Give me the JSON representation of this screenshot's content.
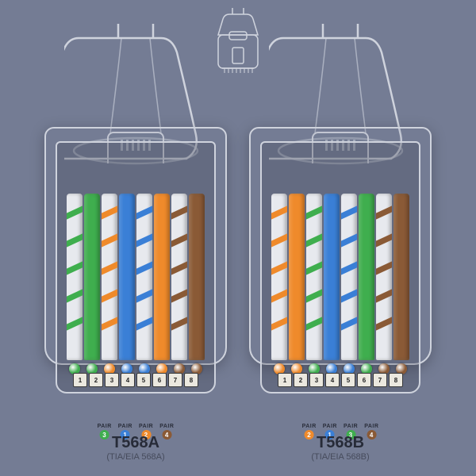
{
  "background_color": "#747c94",
  "outline_color": "#cfd3dd",
  "pin_bg": "#ebe8df",
  "pin_border": "#3a3a3a",
  "pair_text": "PAIR",
  "pins": [
    "1",
    "2",
    "3",
    "4",
    "5",
    "6",
    "7",
    "8"
  ],
  "connectors": {
    "a": {
      "title": "T568A",
      "subtitle": "(TIA/EIA 568A)",
      "wires": [
        {
          "base": "#e7e9ee",
          "stripe": "#3fae4e"
        },
        {
          "base": "#3fae4e",
          "stripe": null
        },
        {
          "base": "#e7e9ee",
          "stripe": "#ef8a2b"
        },
        {
          "base": "#3a7fd6",
          "stripe": null
        },
        {
          "base": "#e7e9ee",
          "stripe": "#3a7fd6"
        },
        {
          "base": "#ef8a2b",
          "stripe": null
        },
        {
          "base": "#e7e9ee",
          "stripe": "#8a5a36"
        },
        {
          "base": "#8a5a36",
          "stripe": null
        }
      ],
      "pairs": [
        {
          "num": "3",
          "color": "#3fae4e"
        },
        {
          "num": "1",
          "color": "#3a7fd6"
        },
        {
          "num": "2",
          "color": "#ef8a2b"
        },
        {
          "num": "4",
          "color": "#8a5a36"
        }
      ]
    },
    "b": {
      "title": "T568B",
      "subtitle": "(TIA/EIA 568B)",
      "wires": [
        {
          "base": "#e7e9ee",
          "stripe": "#ef8a2b"
        },
        {
          "base": "#ef8a2b",
          "stripe": null
        },
        {
          "base": "#e7e9ee",
          "stripe": "#3fae4e"
        },
        {
          "base": "#3a7fd6",
          "stripe": null
        },
        {
          "base": "#e7e9ee",
          "stripe": "#3a7fd6"
        },
        {
          "base": "#3fae4e",
          "stripe": null
        },
        {
          "base": "#e7e9ee",
          "stripe": "#8a5a36"
        },
        {
          "base": "#8a5a36",
          "stripe": null
        }
      ],
      "pairs": [
        {
          "num": "2",
          "color": "#ef8a2b"
        },
        {
          "num": "1",
          "color": "#3a7fd6"
        },
        {
          "num": "3",
          "color": "#3fae4e"
        },
        {
          "num": "4",
          "color": "#8a5a36"
        }
      ]
    }
  }
}
